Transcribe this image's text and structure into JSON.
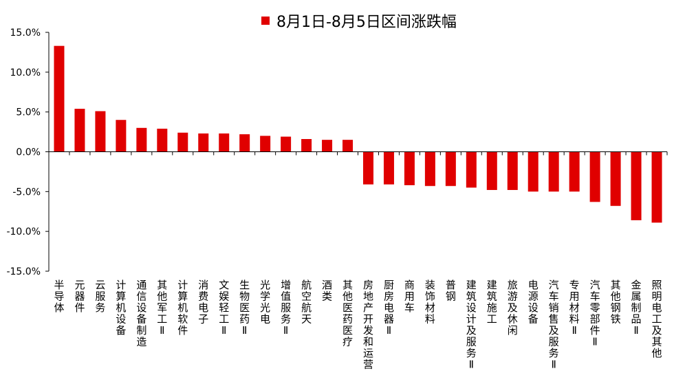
{
  "chart_data": {
    "type": "bar",
    "title": "",
    "xlabel": "",
    "ylabel": "",
    "ylim": [
      -15,
      15
    ],
    "yticks": [
      15,
      10,
      5,
      0,
      -5,
      -10,
      -15
    ],
    "ytick_labels": [
      "15.0%",
      "10.0%",
      "5.0%",
      "0.0%",
      "-5.0%",
      "-10.0%",
      "-15.0%"
    ],
    "grid": false,
    "legend": "top-center",
    "color": "#e00000",
    "series": [
      {
        "name": "8月1日-8月5日区间涨跌幅",
        "values": [
          13.3,
          5.4,
          5.1,
          4.0,
          3.0,
          2.9,
          2.4,
          2.3,
          2.3,
          2.2,
          2.0,
          1.9,
          1.6,
          1.5,
          1.5,
          -4.1,
          -4.1,
          -4.2,
          -4.3,
          -4.3,
          -4.5,
          -4.8,
          -4.8,
          -5.0,
          -5.0,
          -5.0,
          -6.3,
          -6.8,
          -8.6,
          -8.9
        ]
      }
    ],
    "categories": [
      "半导体",
      "元器件",
      "云服务",
      "计算机设备",
      "通信设备制造",
      "其他军工Ⅱ",
      "计算机软件",
      "消费电子",
      "文娱轻工Ⅱ",
      "生物医药Ⅱ",
      "光学光电",
      "增值服务Ⅱ",
      "航空航天",
      "酒类",
      "其他医药医疗",
      "房地产开发和运营",
      "厨房电器Ⅱ",
      "商用车",
      "装饰材料",
      "普钢",
      "建筑设计及服务Ⅱ",
      "建筑施工",
      "旅游及休闲",
      "电源设备",
      "汽车销售及服务Ⅱ",
      "专用材料Ⅱ",
      "汽车零部件Ⅱ",
      "其他钢铁",
      "金属制品Ⅱ",
      "照明电工及其他"
    ]
  }
}
